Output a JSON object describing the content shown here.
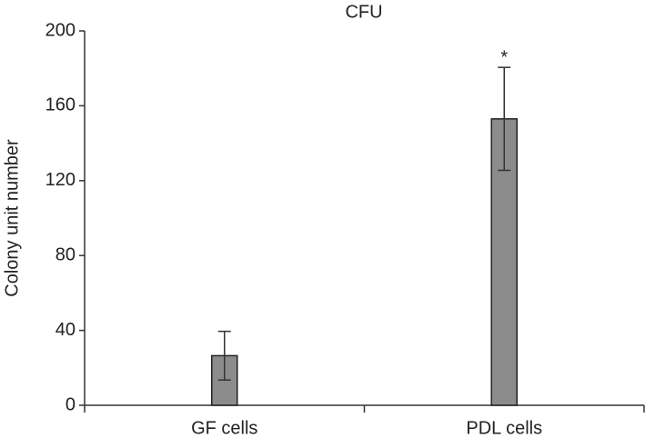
{
  "chart_data": {
    "type": "bar",
    "title": "CFU",
    "ylabel": "Colony unit number",
    "categories": [
      "GF cells",
      "PDL cells"
    ],
    "values": [
      26.5,
      153
    ],
    "errors": [
      13,
      27.5
    ],
    "color": "#8c8c8c",
    "annotations": [
      "*"
    ],
    "ylim": [
      0,
      200
    ],
    "yticks": [
      0,
      40,
      80,
      120,
      160,
      200
    ],
    "grid": false
  }
}
